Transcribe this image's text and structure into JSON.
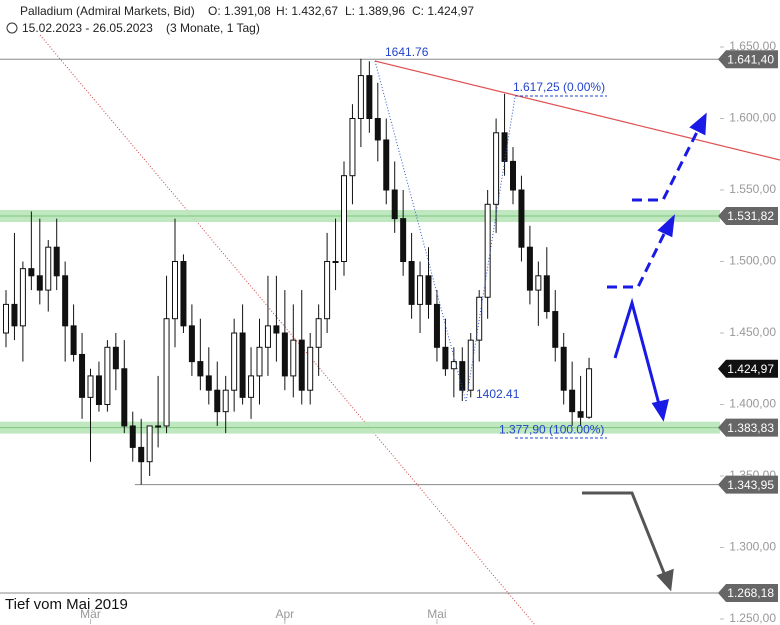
{
  "chart_data": {
    "type": "candlestick",
    "title": "Palladium (Admiral Markets, Bid)",
    "ohlc_labels": [
      "O: 1.391,08",
      "H: 1.432,67",
      "L: 1.389,96",
      "C: 1.424,97"
    ],
    "date_range": "15.02.2023 - 26.05.2023",
    "period": "(3 Monate, 1 Tag)",
    "note": "Tief vom Mai 2019",
    "categories": [
      null,
      null,
      null,
      null,
      null,
      null,
      null,
      null,
      null,
      null,
      "Mär",
      null,
      null,
      null,
      null,
      null,
      null,
      null,
      null,
      null,
      null,
      null,
      null,
      null,
      null,
      null,
      null,
      null,
      null,
      null,
      null,
      null,
      null,
      "Apr",
      null,
      null,
      null,
      null,
      null,
      null,
      null,
      null,
      null,
      null,
      null,
      null,
      null,
      null,
      null,
      null,
      null,
      "Mai",
      null,
      null,
      null,
      null,
      null,
      null,
      null,
      null,
      null,
      null,
      null,
      null,
      null,
      null,
      null,
      null,
      null,
      null
    ],
    "ohlc": [
      [
        1450,
        1480,
        1440,
        1470
      ],
      [
        1470,
        1520,
        1445,
        1455
      ],
      [
        1455,
        1500,
        1430,
        1495
      ],
      [
        1495,
        1535,
        1480,
        1490
      ],
      [
        1490,
        1530,
        1470,
        1480
      ],
      [
        1480,
        1515,
        1465,
        1510
      ],
      [
        1510,
        1530,
        1480,
        1490
      ],
      [
        1490,
        1500,
        1430,
        1455
      ],
      [
        1455,
        1470,
        1430,
        1435
      ],
      [
        1435,
        1450,
        1390,
        1405
      ],
      [
        1405,
        1425,
        1360,
        1420
      ],
      [
        1420,
        1430,
        1395,
        1400
      ],
      [
        1400,
        1445,
        1395,
        1440
      ],
      [
        1440,
        1450,
        1410,
        1425
      ],
      [
        1425,
        1445,
        1380,
        1385
      ],
      [
        1385,
        1395,
        1360,
        1370
      ],
      [
        1370,
        1390,
        1344,
        1360
      ],
      [
        1360,
        1385,
        1350,
        1385
      ],
      [
        1385,
        1420,
        1370,
        1385
      ],
      [
        1385,
        1490,
        1380,
        1460
      ],
      [
        1460,
        1530,
        1440,
        1500
      ],
      [
        1500,
        1505,
        1450,
        1455
      ],
      [
        1455,
        1470,
        1420,
        1430
      ],
      [
        1430,
        1460,
        1410,
        1420
      ],
      [
        1420,
        1440,
        1400,
        1410
      ],
      [
        1410,
        1430,
        1385,
        1395
      ],
      [
        1395,
        1420,
        1380,
        1410
      ],
      [
        1410,
        1460,
        1395,
        1450
      ],
      [
        1450,
        1470,
        1400,
        1405
      ],
      [
        1405,
        1440,
        1390,
        1420
      ],
      [
        1420,
        1460,
        1400,
        1440
      ],
      [
        1440,
        1490,
        1420,
        1455
      ],
      [
        1455,
        1490,
        1430,
        1450
      ],
      [
        1450,
        1480,
        1410,
        1420
      ],
      [
        1420,
        1470,
        1405,
        1445
      ],
      [
        1445,
        1480,
        1400,
        1410
      ],
      [
        1410,
        1450,
        1400,
        1440
      ],
      [
        1440,
        1470,
        1420,
        1460
      ],
      [
        1460,
        1520,
        1450,
        1500
      ],
      [
        1500,
        1530,
        1480,
        1500
      ],
      [
        1500,
        1570,
        1490,
        1560
      ],
      [
        1560,
        1610,
        1540,
        1600
      ],
      [
        1600,
        1641.76,
        1580,
        1630
      ],
      [
        1630,
        1640,
        1590,
        1600
      ],
      [
        1600,
        1625,
        1570,
        1585
      ],
      [
        1585,
        1600,
        1540,
        1550
      ],
      [
        1550,
        1570,
        1520,
        1530
      ],
      [
        1530,
        1550,
        1490,
        1500
      ],
      [
        1500,
        1520,
        1460,
        1470
      ],
      [
        1470,
        1500,
        1450,
        1490
      ],
      [
        1490,
        1510,
        1460,
        1470
      ],
      [
        1470,
        1480,
        1430,
        1440
      ],
      [
        1440,
        1460,
        1420,
        1425
      ],
      [
        1425,
        1440,
        1405,
        1430
      ],
      [
        1430,
        1440,
        1402.41,
        1410
      ],
      [
        1410,
        1450,
        1405,
        1445
      ],
      [
        1445,
        1480,
        1430,
        1475
      ],
      [
        1475,
        1550,
        1460,
        1540
      ],
      [
        1540,
        1600,
        1520,
        1590
      ],
      [
        1590,
        1617.25,
        1560,
        1570
      ],
      [
        1570,
        1580,
        1540,
        1550
      ],
      [
        1550,
        1560,
        1500,
        1510
      ],
      [
        1510,
        1525,
        1470,
        1480
      ],
      [
        1480,
        1500,
        1455,
        1490
      ],
      [
        1490,
        1510,
        1460,
        1465
      ],
      [
        1465,
        1480,
        1430,
        1440
      ],
      [
        1440,
        1450,
        1400,
        1410
      ],
      [
        1410,
        1430,
        1385,
        1395
      ],
      [
        1395,
        1420,
        1385,
        1391.08
      ],
      [
        1391.08,
        1432.67,
        1389.96,
        1424.97
      ]
    ],
    "ylim": [
      1250,
      1650
    ],
    "yticks": [
      {
        "value": 1650,
        "label": "1.650,00"
      },
      {
        "value": 1600,
        "label": "1.600,00"
      },
      {
        "value": 1550,
        "label": "1.550,00"
      },
      {
        "value": 1500,
        "label": "1.500,00"
      },
      {
        "value": 1450,
        "label": "1.450,00"
      },
      {
        "value": 1400,
        "label": "1.400,00"
      },
      {
        "value": 1350,
        "label": "1.350,00"
      },
      {
        "value": 1300,
        "label": "1.300,00"
      },
      {
        "value": 1250,
        "label": "1.250,00"
      }
    ],
    "levels": [
      {
        "value": 1641.4,
        "label": "1.641,40",
        "style": "line",
        "color": "#666666"
      },
      {
        "value": 1531.82,
        "label": "1.531,82",
        "style": "band",
        "color": "#666666"
      },
      {
        "value": 1424.97,
        "label": "1.424,97",
        "style": "none",
        "color": "#111111"
      },
      {
        "value": 1383.83,
        "label": "1.383,83",
        "style": "band",
        "color": "#666666"
      },
      {
        "value": 1343.95,
        "label": "1.343,95",
        "style": "line",
        "color": "#666666"
      },
      {
        "value": 1268.18,
        "label": "1.268,18",
        "style": "line",
        "color": "#666666"
      }
    ],
    "annotations": [
      {
        "value": 1641.76,
        "label": "1641.76"
      },
      {
        "value": 1617.25,
        "label": "1.617,25 (0.00%)"
      },
      {
        "value": 1402.41,
        "label": "1402.41"
      },
      {
        "value": 1377.9,
        "label": "1.377,90 (100.00%)"
      }
    ]
  }
}
